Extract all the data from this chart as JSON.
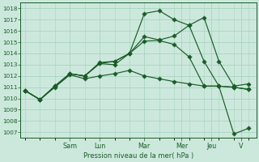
{
  "bg_color": "#cce8dc",
  "grid_color": "#a8d4c0",
  "line_color": "#1a5c28",
  "ylabel": "Pression niveau de la mer( hPa )",
  "ylim": [
    1006.5,
    1018.5
  ],
  "yticks": [
    1007,
    1008,
    1009,
    1010,
    1011,
    1012,
    1013,
    1014,
    1015,
    1016,
    1017,
    1018
  ],
  "day_labels": [
    "Sam",
    "Lun",
    "Mar",
    "Mer",
    "Jeu",
    "V"
  ],
  "day_x": [
    3,
    5,
    8,
    10.5,
    12.5,
    14.5
  ],
  "xlim": [
    -0.3,
    15.5
  ],
  "s1_x": [
    0,
    1,
    2,
    3,
    4,
    5,
    6,
    7,
    8,
    9,
    10,
    11,
    12,
    13,
    14,
    15
  ],
  "s1_y": [
    1010.7,
    1009.9,
    1011.1,
    1012.2,
    1012.0,
    1013.1,
    1013.3,
    1014.0,
    1017.55,
    1017.8,
    1017.0,
    1016.5,
    1017.2,
    1013.3,
    1011.1,
    1011.3
  ],
  "s2_x": [
    0,
    1,
    2,
    3,
    4,
    5,
    6,
    7,
    8,
    9,
    10,
    11,
    12,
    13,
    14,
    15
  ],
  "s2_y": [
    1010.7,
    1009.9,
    1011.1,
    1012.2,
    1012.0,
    1013.1,
    1013.0,
    1014.0,
    1015.5,
    1015.2,
    1015.55,
    1016.5,
    1013.3,
    1011.1,
    1006.85,
    1007.35
  ],
  "s3_x": [
    0,
    1,
    2,
    3,
    4,
    5,
    6,
    7,
    8,
    9,
    10,
    11,
    12,
    13,
    14,
    15
  ],
  "s3_y": [
    1010.7,
    1009.9,
    1011.1,
    1012.2,
    1012.0,
    1013.2,
    1013.3,
    1014.0,
    1015.1,
    1015.15,
    1014.8,
    1013.7,
    1011.1,
    1011.1,
    1011.0,
    1010.8
  ],
  "s4_x": [
    0,
    1,
    2,
    3,
    4,
    5,
    6,
    7,
    8,
    9,
    10,
    11,
    12,
    13,
    14,
    15
  ],
  "s4_y": [
    1010.7,
    1009.9,
    1011.0,
    1012.1,
    1011.75,
    1012.0,
    1012.2,
    1012.5,
    1012.0,
    1011.75,
    1011.5,
    1011.3,
    1011.1,
    1011.1,
    1011.0,
    1010.8
  ]
}
